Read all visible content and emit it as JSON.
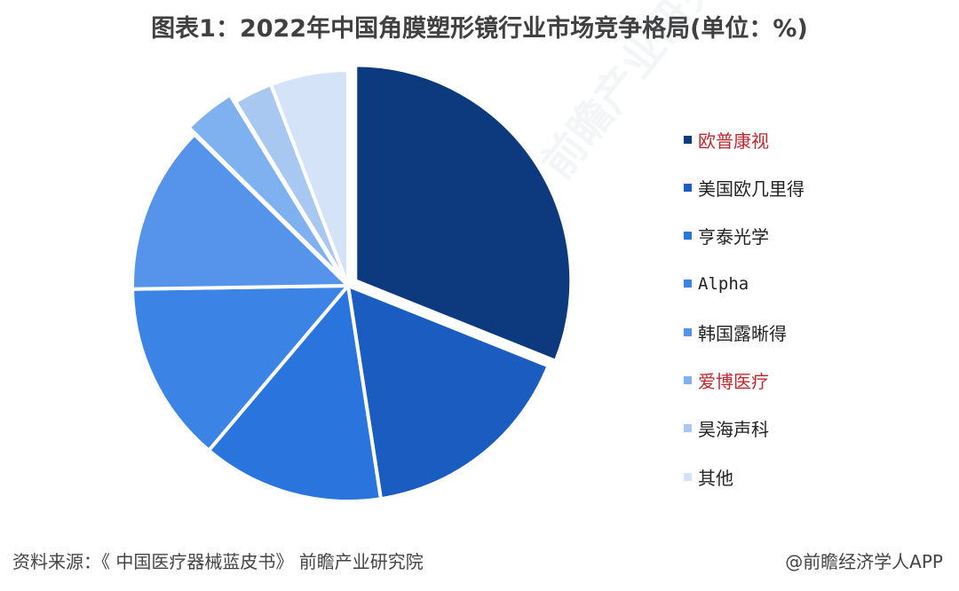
{
  "chart_data": {
    "type": "pie",
    "title": "图表1：2022年中国角膜塑形镜行业市场竞争格局(单位：%)",
    "categories": [
      "欧普康视",
      "美国欧几里得",
      "亨泰光学",
      "Alpha",
      "韩国露晰得",
      "爱博医疗",
      "昊海声科",
      "其他"
    ],
    "values": [
      32,
      17,
      14,
      14,
      13,
      4,
      3,
      6
    ],
    "colors": [
      "#0d3a7e",
      "#1a5cc0",
      "#2a74de",
      "#3b84e6",
      "#5693ea",
      "#7fb0f0",
      "#a8c8f2",
      "#d5e3f8"
    ],
    "legend_text_colors": [
      "#c0282d",
      "#222222",
      "#222222",
      "#222222",
      "#222222",
      "#c0282d",
      "#222222",
      "#222222"
    ],
    "legend_position": "right",
    "exploded": [
      true,
      false,
      false,
      false,
      false,
      true,
      false,
      false
    ]
  },
  "footer": {
    "source": "资料来源：《 中国医疗器械蓝皮书》 前瞻产业研究院",
    "credit": "@前瞻经济学人APP"
  },
  "watermark": "前瞻产业研究院"
}
